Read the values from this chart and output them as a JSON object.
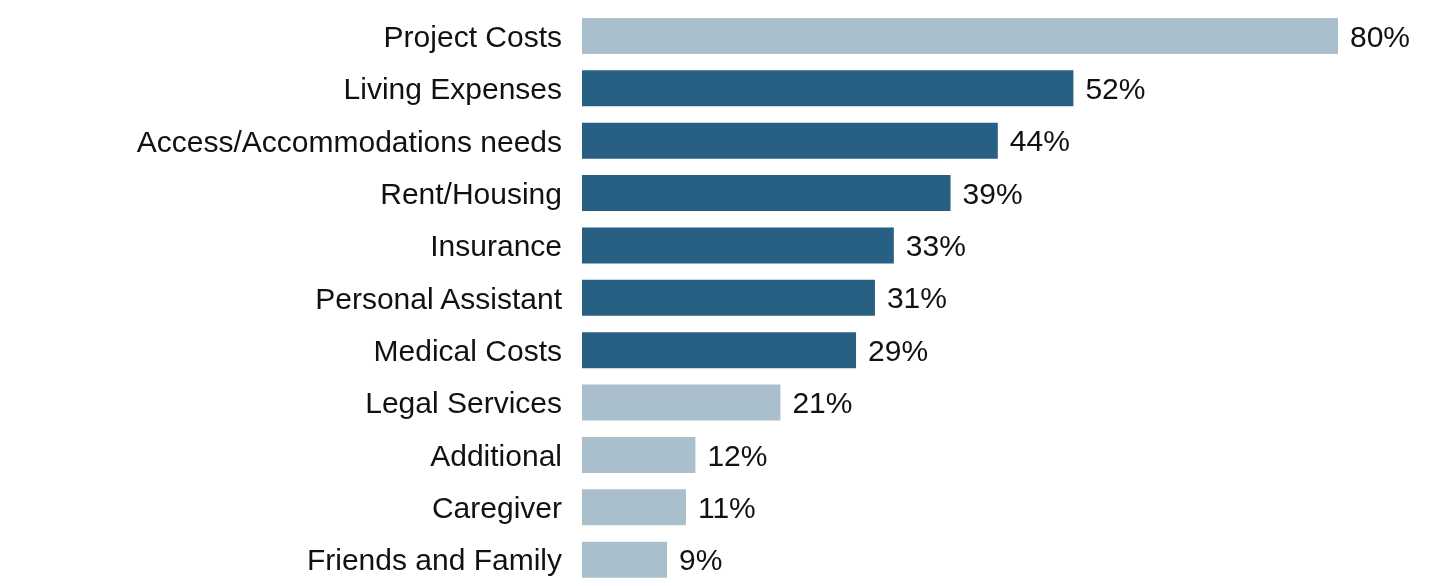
{
  "chart_data": {
    "type": "bar",
    "orientation": "horizontal",
    "categories": [
      "Project Costs",
      "Living Expenses",
      "Access/Accommodations needs",
      "Rent/Housing",
      "Insurance",
      "Personal Assistant",
      "Medical Costs",
      "Legal Services",
      "Additional",
      "Caregiver",
      "Friends and Family"
    ],
    "values": [
      80,
      52,
      44,
      39,
      33,
      31,
      29,
      21,
      12,
      11,
      9
    ],
    "colors": [
      "#a9bfcc",
      "#276083",
      "#276083",
      "#276083",
      "#276083",
      "#276083",
      "#276083",
      "#a9bfcc",
      "#a9bfcc",
      "#a9bfcc",
      "#a9bfcc"
    ],
    "value_labels": [
      "80%",
      "52%",
      "44%",
      "39%",
      "33%",
      "31%",
      "29%",
      "21%",
      "12%",
      "11%",
      "9%"
    ],
    "grid": false,
    "legend": false
  }
}
